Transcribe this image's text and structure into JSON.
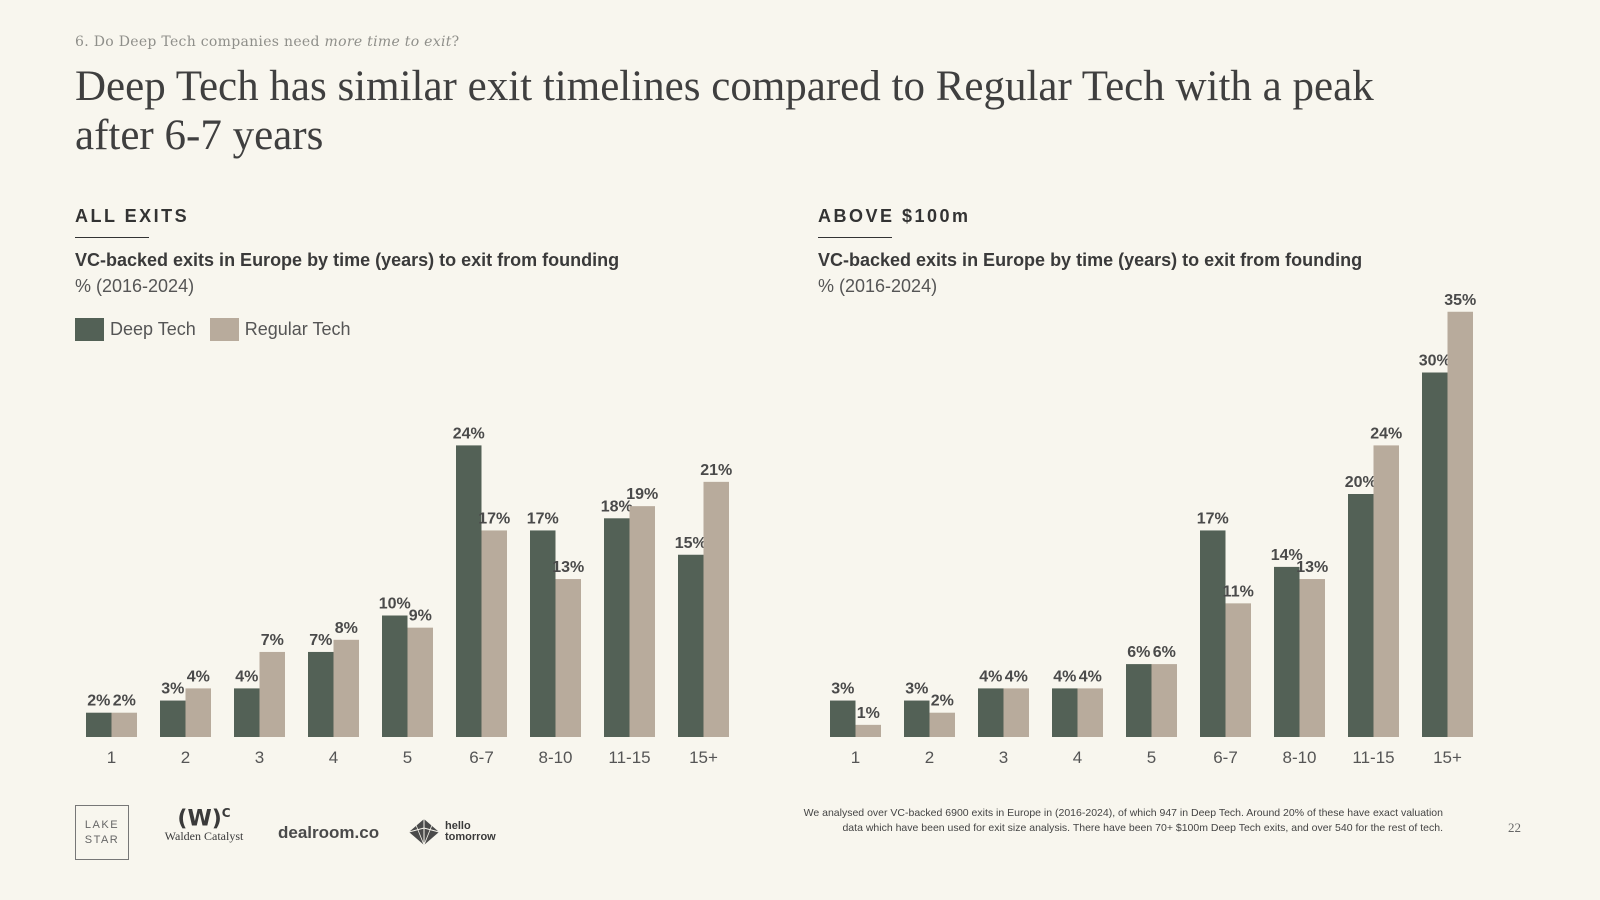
{
  "header": {
    "section_label_prefix": "6. Do Deep Tech companies need ",
    "section_label_emphasis": "more time to exit",
    "section_label_suffix": "?",
    "title": "Deep Tech has similar exit timelines compared to Regular Tech with a peak after 6-7 years"
  },
  "legend": {
    "deep_tech": "Deep Tech",
    "regular_tech": "Regular Tech"
  },
  "colors": {
    "deep_tech": "#536156",
    "regular_tech": "#b8ab9c",
    "background": "#f8f6ee"
  },
  "chart_data": [
    {
      "type": "bar",
      "panel_heading": "ALL EXITS",
      "title": "VC-backed exits in Europe by time (years) to exit from founding",
      "subtitle": "% (2016-2024)",
      "categories": [
        "1",
        "2",
        "3",
        "4",
        "5",
        "6-7",
        "8-10",
        "11-15",
        "15+"
      ],
      "series": [
        {
          "name": "Deep Tech",
          "values": [
            2,
            3,
            4,
            7,
            10,
            24,
            17,
            18,
            15
          ]
        },
        {
          "name": "Regular Tech",
          "values": [
            2,
            4,
            7,
            8,
            9,
            17,
            13,
            19,
            21
          ]
        }
      ],
      "value_suffix": "%",
      "xlabel": "",
      "ylabel": "",
      "ylim": [
        0,
        24
      ],
      "grid": false,
      "legend": "top-left"
    },
    {
      "type": "bar",
      "panel_heading": "ABOVE $100m",
      "title": "VC-backed exits in Europe by time (years) to exit from founding",
      "subtitle": "% (2016-2024)",
      "categories": [
        "1",
        "2",
        "3",
        "4",
        "5",
        "6-7",
        "8-10",
        "11-15",
        "15+"
      ],
      "series": [
        {
          "name": "Deep Tech",
          "values": [
            3,
            3,
            4,
            4,
            6,
            17,
            14,
            20,
            30
          ]
        },
        {
          "name": "Regular Tech",
          "values": [
            1,
            2,
            4,
            4,
            6,
            11,
            13,
            24,
            35
          ]
        }
      ],
      "value_suffix": "%",
      "xlabel": "",
      "ylabel": "",
      "ylim": [
        0,
        35
      ],
      "grid": false,
      "legend": "none"
    }
  ],
  "footer": {
    "logos": {
      "lake_star_line1": "LAKE",
      "lake_star_line2": "STAR",
      "walden_mark": "(W)",
      "walden_mark_sup": "C",
      "walden_name": "Walden Catalyst",
      "dealroom": "dealroom.co",
      "hello_line1": "hello",
      "hello_line2": "tomorrow"
    },
    "footnote_line1": "We analysed over VC-backed 6900 exits in Europe in (2016-2024), of which 947 in Deep Tech. Around 20% of these have exact valuation",
    "footnote_line2": "data which have been used for exit size analysis. There have been 70+ $100m Deep Tech exits, and over 540 for the rest of tech.",
    "page_number": "22"
  }
}
